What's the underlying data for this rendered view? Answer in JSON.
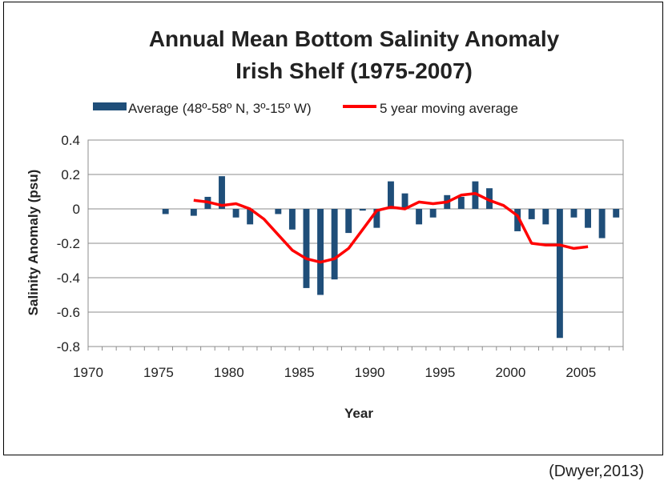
{
  "chart_data": {
    "type": "bar",
    "title": "Annual Mean Bottom Salinity Anomaly",
    "subtitle": "Irish Shelf (1975-2007)",
    "xlabel": "Year",
    "ylabel": "Salinity Anomaly (psu)",
    "xlim": [
      1970,
      2008
    ],
    "ylim": [
      -0.8,
      0.4
    ],
    "xticks": [
      "1970",
      "1975",
      "1980",
      "1985",
      "1990",
      "1995",
      "2000",
      "2005"
    ],
    "yticks": [
      "0.4",
      "0.2",
      "0",
      "-0.2",
      "-0.4",
      "-0.6",
      "-0.8"
    ],
    "legend_position": "top",
    "grid": "horizontal",
    "series": [
      {
        "name": "Average (48º-58º N, 3º-15º W)",
        "kind": "bar",
        "color": "#1f4e79",
        "x": [
          1975,
          1977,
          1978,
          1979,
          1980,
          1981,
          1983,
          1984,
          1985,
          1986,
          1987,
          1988,
          1989,
          1990,
          1991,
          1992,
          1993,
          1994,
          1995,
          1996,
          1997,
          1998,
          2000,
          2001,
          2002,
          2003,
          2004,
          2005,
          2006,
          2007
        ],
        "values": [
          -0.03,
          -0.04,
          0.07,
          0.19,
          -0.05,
          -0.09,
          -0.03,
          -0.12,
          -0.46,
          -0.5,
          -0.41,
          -0.14,
          -0.01,
          -0.11,
          0.16,
          0.09,
          -0.09,
          -0.05,
          0.08,
          0.07,
          0.16,
          0.12,
          -0.13,
          -0.06,
          -0.09,
          -0.75,
          -0.05,
          -0.11,
          -0.17,
          -0.05
        ]
      },
      {
        "name": "5 year moving average",
        "kind": "line",
        "color": "#ff0000",
        "x": [
          1977,
          1978,
          1979,
          1980,
          1981,
          1982,
          1983,
          1984,
          1985,
          1986,
          1987,
          1988,
          1989,
          1990,
          1991,
          1992,
          1993,
          1994,
          1995,
          1996,
          1997,
          1998,
          1999,
          2000,
          2001,
          2002,
          2003,
          2004,
          2005
        ],
        "values": [
          0.05,
          0.04,
          0.02,
          0.03,
          0.0,
          -0.06,
          -0.15,
          -0.24,
          -0.29,
          -0.31,
          -0.29,
          -0.23,
          -0.12,
          -0.01,
          0.01,
          0.0,
          0.04,
          0.03,
          0.04,
          0.08,
          0.09,
          0.05,
          0.02,
          -0.04,
          -0.2,
          -0.21,
          -0.21,
          -0.23,
          -0.22
        ]
      }
    ]
  },
  "source_note": "(Dwyer,2013)"
}
